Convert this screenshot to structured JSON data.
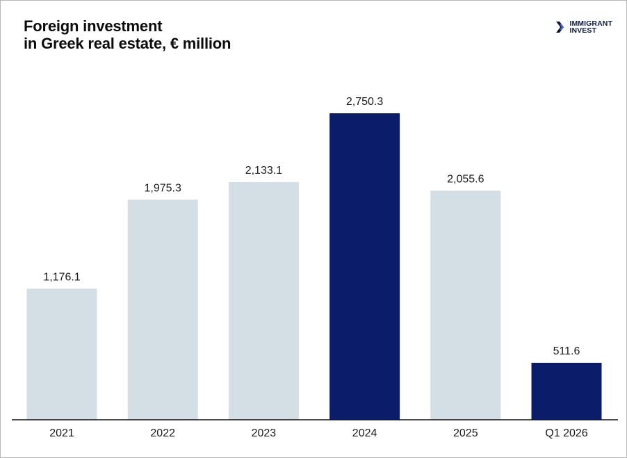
{
  "header": {
    "title_line1": "Foreign investment",
    "title_line2": "in Greek real estate, € million"
  },
  "brand": {
    "logo_icon": "immigrant-invest-chevron-icon",
    "name_line1": "IMMIGRANT",
    "name_line2": "INVEST",
    "color": "#0e1a3c"
  },
  "chart_data": {
    "type": "bar",
    "title": "Foreign investment in Greek real estate, € million",
    "xlabel": "",
    "ylabel": "",
    "categories": [
      "2021",
      "2022",
      "2023",
      "2024",
      "2025",
      "Q1 2026"
    ],
    "values": [
      1176.1,
      1975.3,
      2133.1,
      2750.3,
      2055.6,
      511.6
    ],
    "value_labels": [
      "1,176.1",
      "1,975.3",
      "2,133.1",
      "2,750.3",
      "2,055.6",
      "511.6"
    ],
    "highlighted": [
      false,
      false,
      false,
      true,
      false,
      true
    ],
    "colors": {
      "default": "#d3dee5",
      "highlight": "#0b1c6b"
    },
    "ylim": [
      0,
      2750.3
    ],
    "grid": false,
    "legend": "none"
  }
}
